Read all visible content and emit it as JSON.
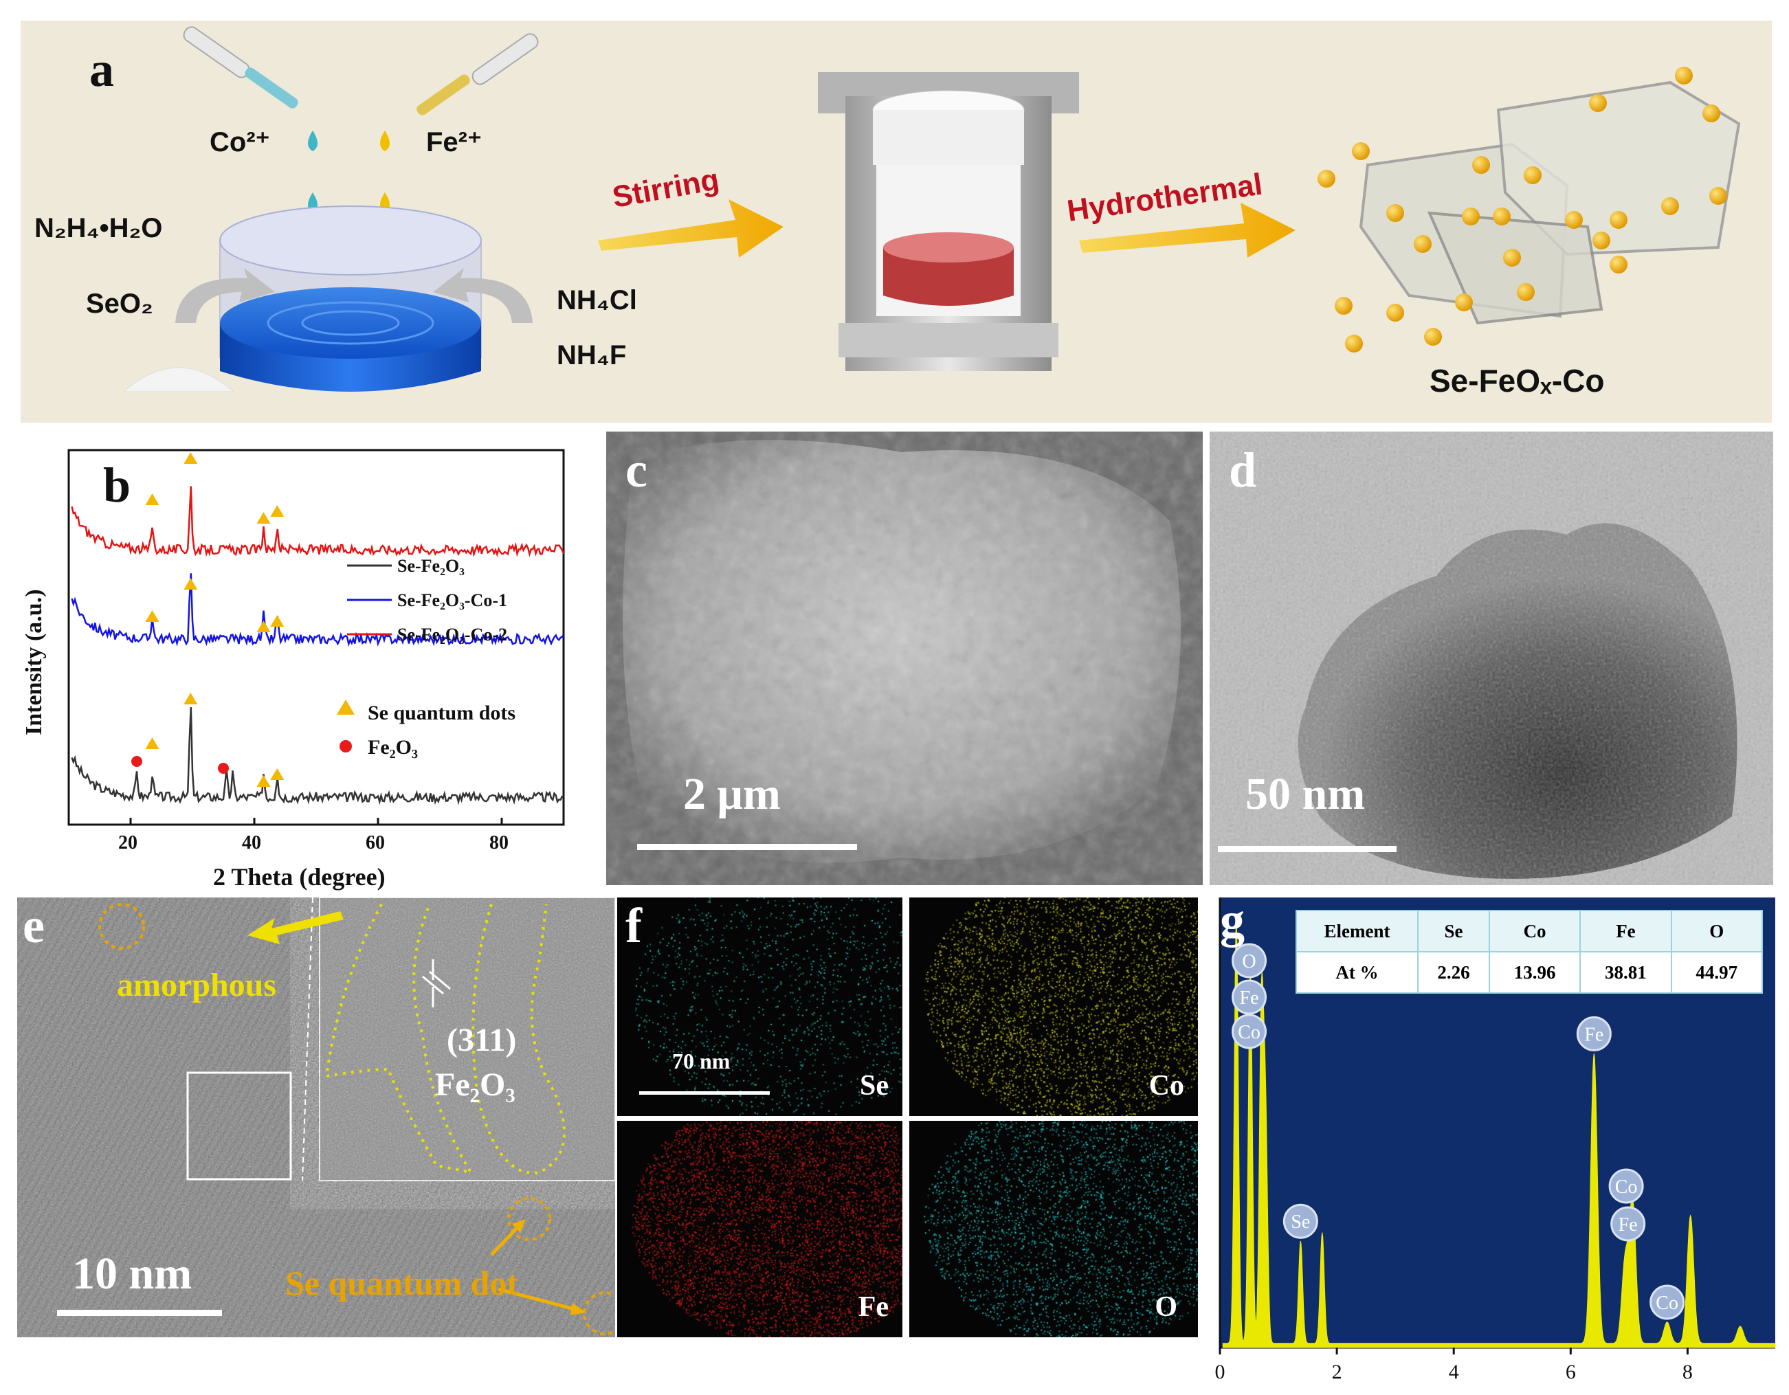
{
  "panel_a": {
    "label": "a",
    "reagents": {
      "co": "Co²⁺",
      "fe": "Fe²⁺",
      "n2h4": "N₂H₄•H₂O",
      "seo2": "SeO₂",
      "nh4cl": "NH₄Cl",
      "nh4f": "NH₄F"
    },
    "step1": "Stirring",
    "step2": "Hydrothermal",
    "product": "Se-FeOₓ-Co"
  },
  "panel_b": {
    "label": "b",
    "chart_data": {
      "type": "line",
      "xlabel": "2 Theta (degree)",
      "ylabel": "Intensity (a.u.)",
      "xlim": [
        10,
        90
      ],
      "xticks": [
        20,
        40,
        60,
        80
      ],
      "legend_position": "center-right",
      "series": [
        {
          "name": "Se-Fe₂O₃",
          "color": "#333333",
          "peaks_2theta": [
            21.0,
            23.5,
            29.7,
            35.5,
            36.5,
            41.5,
            43.7
          ]
        },
        {
          "name": "Se-Fe₂O₃-Co-1",
          "color": "#1414e6",
          "peaks_2theta": [
            23.5,
            29.7,
            41.5,
            43.7
          ]
        },
        {
          "name": "Se-Fe₂O₃-Co-2",
          "color": "#e61414",
          "peaks_2theta": [
            23.5,
            29.7,
            41.5,
            43.7
          ]
        }
      ],
      "markers": [
        {
          "name": "Se quantum dots",
          "symbol": "triangle",
          "color": "#f2b800"
        },
        {
          "name": "Fe₂O₃",
          "symbol": "circle",
          "color": "#e81a1a"
        }
      ]
    }
  },
  "panel_c": {
    "label": "c",
    "scale": "2 μm"
  },
  "panel_d": {
    "label": "d",
    "scale": "50 nm"
  },
  "panel_e": {
    "label": "e",
    "amorphous": "amorphous",
    "plane": "(311)",
    "phase": "Fe₂O₃",
    "qd": "Se quantum dot",
    "scale": "10 nm"
  },
  "panel_f": {
    "label": "f",
    "scale": "70 nm",
    "maps": [
      {
        "element": "Se",
        "color": "#21c4b8"
      },
      {
        "element": "Co",
        "color": "#c8c81e"
      },
      {
        "element": "Fe",
        "color": "#cc1a1a"
      },
      {
        "element": "O",
        "color": "#21c4c4"
      }
    ]
  },
  "panel_g": {
    "label": "g",
    "table": {
      "headers": [
        "Element",
        "Se",
        "Co",
        "Fe",
        "O"
      ],
      "row": [
        "At %",
        "2.26",
        "13.96",
        "38.81",
        "44.97"
      ]
    },
    "chart_data": {
      "type": "area",
      "xlim": [
        0,
        9.5
      ],
      "xticks": [
        0,
        2,
        4,
        6,
        8
      ],
      "peaks": [
        {
          "energy_keV": 0.28,
          "height": 1.0,
          "label": ""
        },
        {
          "energy_keV": 0.52,
          "height": 0.88,
          "label": "O"
        },
        {
          "energy_keV": 0.71,
          "height": 0.78,
          "label": "Fe"
        },
        {
          "energy_keV": 0.78,
          "height": 0.52,
          "label": "Co"
        },
        {
          "energy_keV": 1.38,
          "height": 0.24,
          "label": "Se"
        },
        {
          "energy_keV": 1.75,
          "height": 0.26,
          "label": ""
        },
        {
          "energy_keV": 6.4,
          "height": 0.68,
          "label": "Fe"
        },
        {
          "energy_keV": 6.93,
          "height": 0.19,
          "label": "Co"
        },
        {
          "energy_keV": 7.06,
          "height": 0.33,
          "label": "Fe"
        },
        {
          "energy_keV": 7.65,
          "height": 0.05,
          "label": "Co"
        },
        {
          "energy_keV": 8.05,
          "height": 0.3,
          "label": ""
        },
        {
          "energy_keV": 8.9,
          "height": 0.04,
          "label": ""
        }
      ]
    }
  }
}
